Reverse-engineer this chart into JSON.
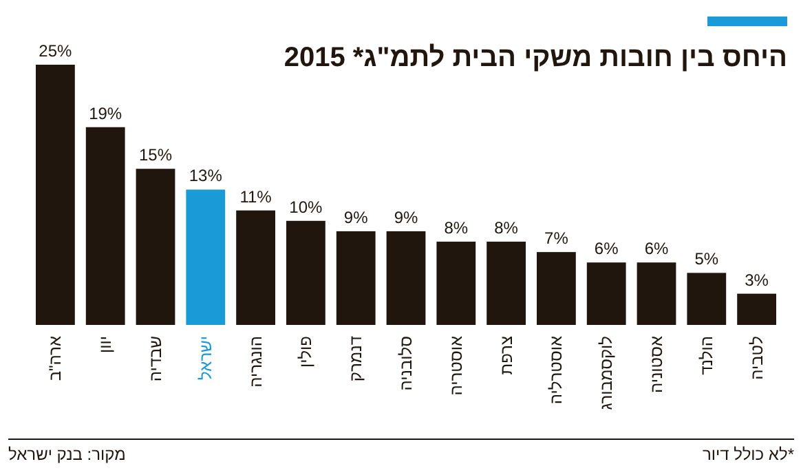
{
  "chart_data": {
    "type": "bar",
    "title": "היחס בין חובות משקי הבית לתמ\"ג* 2015",
    "categories": [
      "ארה\"ב",
      "יוון",
      "שבדיה",
      "ישראל",
      "הונגריה",
      "פולין",
      "דנמרק",
      "סלובניה",
      "אוסטריה",
      "צרפת",
      "אוסטרליה",
      "לוקסמבורג",
      "אסטוניה",
      "הולנד",
      "לטביה"
    ],
    "values": [
      25,
      19,
      15,
      13,
      11,
      10,
      9,
      9,
      8,
      8,
      7,
      6,
      6,
      5,
      3
    ],
    "value_labels": [
      "25%",
      "19%",
      "15%",
      "13%",
      "11%",
      "10%",
      "9%",
      "9%",
      "8%",
      "8%",
      "7%",
      "6%",
      "6%",
      "5%",
      "3%"
    ],
    "colors": [
      "#21160e",
      "#21160e",
      "#21160e",
      "#1a9ad6",
      "#21160e",
      "#21160e",
      "#21160e",
      "#21160e",
      "#21160e",
      "#21160e",
      "#21160e",
      "#21160e",
      "#21160e",
      "#21160e",
      "#21160e"
    ],
    "annotations": [
      "מקור: בנק ישראל",
      "*לא כולל דיור"
    ]
  }
}
